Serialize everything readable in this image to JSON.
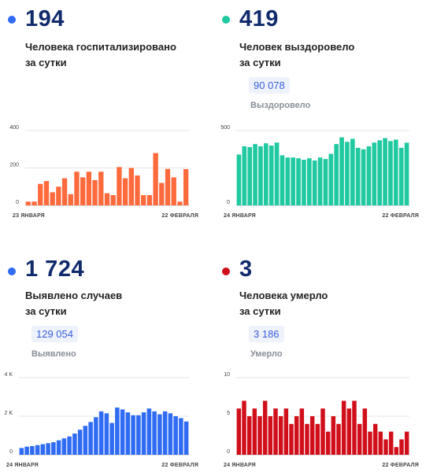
{
  "panels": [
    {
      "value": "194",
      "caption_line1": "Человека госпитализировано",
      "caption_line2": "за сутки",
      "total": "",
      "total_label": "",
      "dot_color": "#2f6bf3"
    },
    {
      "value": "419",
      "caption_line1": "Человек выздоровело",
      "caption_line2": "за сутки",
      "total": "90 078",
      "total_label": "Выздоровело",
      "dot_color": "#20c9a0"
    },
    {
      "value": "1 724",
      "caption_line1": "Выявлено случаев",
      "caption_line2": "за сутки",
      "total": "129 054",
      "total_label": "Выявлено",
      "dot_color": "#2f6bf3"
    },
    {
      "value": "3",
      "caption_line1": "Человека умерло",
      "caption_line2": "за сутки",
      "total": "3 186",
      "total_label": "Умерло",
      "dot_color": "#d10f1b"
    }
  ],
  "chart_data": [
    {
      "type": "bar",
      "color": "#ff6a3d",
      "x_start_label": "23 ЯНВАРЯ",
      "x_end_label": "22 ФЕВРАЛЯ",
      "ylim": [
        0,
        400
      ],
      "ytick_labels": [
        "400",
        "200",
        "0"
      ],
      "ytick_values": [
        400,
        200,
        0
      ],
      "values": [
        20,
        20,
        115,
        130,
        70,
        100,
        145,
        60,
        180,
        150,
        180,
        135,
        180,
        65,
        55,
        205,
        145,
        200,
        160,
        55,
        55,
        280,
        120,
        195,
        150,
        20,
        194
      ]
    },
    {
      "type": "bar",
      "color": "#20c9a0",
      "x_start_label": "24 ЯНВАРЯ",
      "x_end_label": "22 ФЕВРАЛЯ",
      "ylim": [
        0,
        500
      ],
      "ytick_labels": [
        "500",
        "0"
      ],
      "ytick_values": [
        500,
        0
      ],
      "values": [
        340,
        395,
        390,
        410,
        395,
        415,
        400,
        420,
        335,
        320,
        320,
        315,
        305,
        315,
        300,
        320,
        310,
        345,
        410,
        455,
        425,
        445,
        385,
        375,
        395,
        420,
        435,
        450,
        430,
        440,
        385,
        419
      ]
    },
    {
      "type": "bar",
      "color": "#2f6bf3",
      "x_start_label": "24 ЯНВАРЯ",
      "x_end_label": "22 ФЕВРАЛЯ",
      "ylim": [
        0,
        4000
      ],
      "ytick_labels": [
        "4 K",
        "2 K",
        "0"
      ],
      "ytick_values": [
        4000,
        2000,
        0
      ],
      "values": [
        350,
        420,
        450,
        500,
        550,
        600,
        650,
        750,
        850,
        950,
        1100,
        1300,
        1500,
        1700,
        1950,
        2250,
        2150,
        1650,
        2450,
        2350,
        2200,
        2050,
        2050,
        2200,
        2400,
        2250,
        2100,
        2250,
        2150,
        2000,
        1900,
        1724
      ]
    },
    {
      "type": "bar",
      "color": "#d10f1b",
      "x_start_label": "24 ЯНВАРЯ",
      "x_end_label": "22 ФЕВРАЛЯ",
      "ylim": [
        0,
        10
      ],
      "ytick_labels": [
        "10",
        "5",
        "0"
      ],
      "ytick_values": [
        10,
        5,
        0
      ],
      "values": [
        6,
        7,
        5,
        6,
        5,
        7,
        5,
        6,
        5,
        6,
        4,
        5,
        6,
        4,
        5,
        4,
        6,
        3,
        5,
        4,
        7,
        6,
        7,
        4,
        6,
        3,
        4,
        3,
        2,
        3,
        1,
        2,
        3
      ]
    }
  ]
}
